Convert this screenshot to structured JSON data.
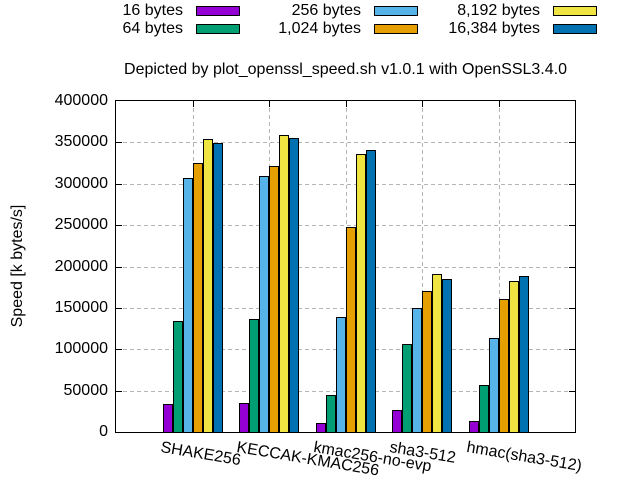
{
  "chart_data": {
    "type": "bar",
    "title": "Depicted by plot_openssl_speed.sh v1.0.1 with OpenSSL3.4.0",
    "xlabel": "",
    "ylabel": "Speed [k bytes/s]",
    "ylim": [
      0,
      400000
    ],
    "ytick_step": 50000,
    "ytick_labels": [
      "0",
      "50000",
      "100000",
      "150000",
      "200000",
      "250000",
      "300000",
      "350000",
      "400000"
    ],
    "grid": true,
    "legend_position": "top-outside, 3 columns x 2 rows",
    "categories": [
      "SHAKE256",
      "KECCAK-KMAC256",
      "kmac256-no-evp",
      "sha3-512",
      "hmac(sha3-512)"
    ],
    "series": [
      {
        "name": "16 bytes",
        "color": "#9400d3",
        "values": [
          34000,
          35000,
          11000,
          26000,
          13000
        ]
      },
      {
        "name": "64 bytes",
        "color": "#009e73",
        "values": [
          134000,
          137000,
          45000,
          106000,
          57000
        ]
      },
      {
        "name": "256 bytes",
        "color": "#56b4e9",
        "values": [
          307000,
          309000,
          139000,
          150000,
          114000
        ]
      },
      {
        "name": "1,024 bytes",
        "color": "#e69f00",
        "values": [
          325000,
          322000,
          248000,
          170000,
          161000
        ]
      },
      {
        "name": "8,192 bytes",
        "color": "#f0e442",
        "values": [
          354000,
          359000,
          336000,
          191000,
          182000
        ]
      },
      {
        "name": "16,384 bytes",
        "color": "#0072b2",
        "values": [
          349000,
          355000,
          341000,
          185000,
          188000
        ]
      }
    ],
    "colors": {
      "background": "#ffffff",
      "border": "#000000",
      "gridline": "#b5b5b5",
      "text": "#000000"
    }
  }
}
